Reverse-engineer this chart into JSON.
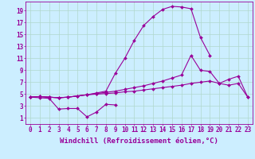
{
  "background_color": "#cceeff",
  "grid_color": "#b0d8cc",
  "line_color": "#990099",
  "xlabel": "Windchill (Refroidissement éolien,°C)",
  "xlabel_fontsize": 6.5,
  "ylabel_ticks": [
    1,
    3,
    5,
    7,
    9,
    11,
    13,
    15,
    17,
    19
  ],
  "xlim": [
    -0.5,
    23.5
  ],
  "ylim": [
    0.0,
    20.5
  ],
  "x_all": [
    0,
    1,
    2,
    3,
    4,
    5,
    6,
    7,
    8,
    9,
    10,
    11,
    12,
    13,
    14,
    15,
    16,
    17,
    18,
    19,
    20,
    21,
    22,
    23
  ],
  "series_peak": [
    4.5,
    4.6,
    4.5,
    4.4,
    4.5,
    4.7,
    4.9,
    5.2,
    5.5,
    8.5,
    11.0,
    14.0,
    16.5,
    18.0,
    19.2,
    19.7,
    19.6,
    19.3,
    14.5,
    11.5,
    null,
    null,
    null,
    null
  ],
  "series_peak_x": [
    0,
    1,
    2,
    3,
    4,
    5,
    6,
    7,
    8,
    9,
    10,
    11,
    12,
    13,
    14,
    15,
    16,
    17,
    18,
    19
  ],
  "series_upper": [
    4.5,
    4.6,
    4.5,
    4.4,
    4.5,
    4.7,
    4.9,
    5.1,
    5.3,
    5.5,
    5.8,
    6.1,
    6.4,
    6.8,
    7.2,
    7.7,
    8.2,
    11.5,
    9.0,
    8.8,
    6.8,
    7.5,
    8.0,
    4.5
  ],
  "series_mid": [
    4.5,
    4.6,
    4.5,
    4.4,
    4.5,
    4.7,
    4.9,
    5.0,
    5.1,
    5.2,
    5.4,
    5.5,
    5.7,
    5.9,
    6.1,
    6.3,
    6.5,
    6.8,
    7.0,
    7.2,
    6.8,
    6.5,
    6.8,
    4.5
  ],
  "series_low": [
    4.5,
    4.4,
    4.3,
    2.5,
    2.6,
    2.6,
    1.2,
    2.0,
    3.3,
    3.2,
    null,
    null,
    null,
    null,
    null,
    null,
    null,
    null,
    null,
    null,
    null,
    null,
    null,
    null
  ],
  "tick_fontsize": 5.5,
  "marker": "D",
  "marker_size": 2.0,
  "linewidth": 0.8
}
